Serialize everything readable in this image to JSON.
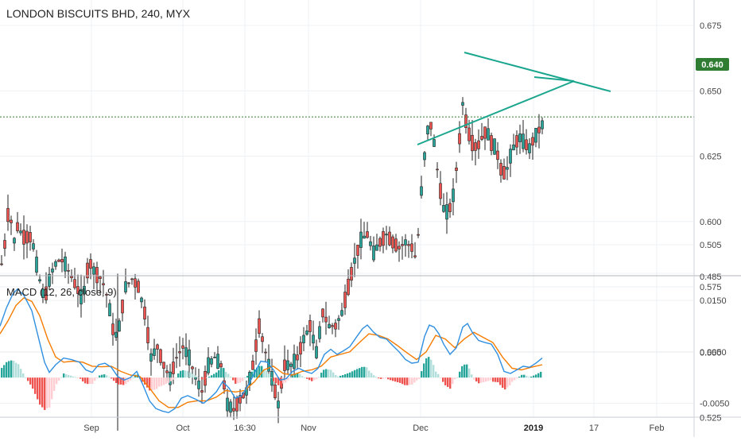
{
  "colors": {
    "background": "#ffffff",
    "grid": "#eef0f3",
    "axis_line": "#cfd3d9",
    "up_candle": "#26a69a",
    "down_candle": "#ef5350",
    "wick": "#222222",
    "price_line": "#2e7d32",
    "price_badge": "#2e7d32",
    "triangle": "#1aa68e",
    "macd": "#2f8fe0",
    "signal": "#f57c00",
    "hist_up": "#26a69a",
    "hist_up_weak": "#b2dfdb",
    "hist_down": "#ef5350",
    "hist_down_weak": "#ffcdd2"
  },
  "header": {
    "symbol_label": "LONDON BISCUITS BHD, 240, MYX"
  },
  "price_badge": {
    "value": "0.640"
  },
  "macd_legend": {
    "label": "MACD (12, 26, close, 9)"
  },
  "chart_data": [
    {
      "type": "candlestick",
      "title": "LONDON BISCUITS BHD, 240, MYX",
      "ylim": [
        0.485,
        0.69
      ],
      "y_ticks": [
        "0.675",
        "0.650",
        "0.625",
        "0.600",
        "0.575",
        "0.550",
        "0.525",
        "0.505",
        "0.485"
      ],
      "x_ticks": [
        "Sep",
        "Oct",
        "16:30",
        "Nov",
        "Dec",
        "2019",
        "17",
        "Feb"
      ],
      "last_price": 0.64,
      "anchors": [
        {
          "x": 0,
          "y": 0.58
        },
        {
          "x": 8,
          "y": 0.595
        },
        {
          "x": 12,
          "y": 0.61
        },
        {
          "x": 16,
          "y": 0.59
        },
        {
          "x": 22,
          "y": 0.598
        },
        {
          "x": 30,
          "y": 0.594
        },
        {
          "x": 40,
          "y": 0.594
        },
        {
          "x": 48,
          "y": 0.58
        },
        {
          "x": 56,
          "y": 0.57
        },
        {
          "x": 64,
          "y": 0.58
        },
        {
          "x": 72,
          "y": 0.585
        },
        {
          "x": 80,
          "y": 0.585
        },
        {
          "x": 88,
          "y": 0.58
        },
        {
          "x": 96,
          "y": 0.575
        },
        {
          "x": 104,
          "y": 0.57
        },
        {
          "x": 112,
          "y": 0.585
        },
        {
          "x": 120,
          "y": 0.58
        },
        {
          "x": 128,
          "y": 0.578
        },
        {
          "x": 136,
          "y": 0.57
        },
        {
          "x": 144,
          "y": 0.555
        },
        {
          "x": 150,
          "y": 0.56
        },
        {
          "x": 158,
          "y": 0.575
        },
        {
          "x": 166,
          "y": 0.578
        },
        {
          "x": 174,
          "y": 0.575
        },
        {
          "x": 182,
          "y": 0.565
        },
        {
          "x": 190,
          "y": 0.548
        },
        {
          "x": 198,
          "y": 0.552
        },
        {
          "x": 206,
          "y": 0.545
        },
        {
          "x": 214,
          "y": 0.54
        },
        {
          "x": 222,
          "y": 0.548
        },
        {
          "x": 230,
          "y": 0.552
        },
        {
          "x": 238,
          "y": 0.548
        },
        {
          "x": 246,
          "y": 0.54
        },
        {
          "x": 254,
          "y": 0.535
        },
        {
          "x": 262,
          "y": 0.545
        },
        {
          "x": 270,
          "y": 0.548
        },
        {
          "x": 278,
          "y": 0.545
        },
        {
          "x": 286,
          "y": 0.53
        },
        {
          "x": 294,
          "y": 0.528
        },
        {
          "x": 302,
          "y": 0.532
        },
        {
          "x": 310,
          "y": 0.535
        },
        {
          "x": 318,
          "y": 0.545
        },
        {
          "x": 326,
          "y": 0.56
        },
        {
          "x": 334,
          "y": 0.55
        },
        {
          "x": 342,
          "y": 0.54
        },
        {
          "x": 350,
          "y": 0.53
        },
        {
          "x": 358,
          "y": 0.545
        },
        {
          "x": 366,
          "y": 0.545
        },
        {
          "x": 374,
          "y": 0.548
        },
        {
          "x": 382,
          "y": 0.555
        },
        {
          "x": 390,
          "y": 0.56
        },
        {
          "x": 398,
          "y": 0.55
        },
        {
          "x": 406,
          "y": 0.565
        },
        {
          "x": 414,
          "y": 0.56
        },
        {
          "x": 422,
          "y": 0.56
        },
        {
          "x": 430,
          "y": 0.565
        },
        {
          "x": 438,
          "y": 0.575
        },
        {
          "x": 446,
          "y": 0.585
        },
        {
          "x": 454,
          "y": 0.593
        },
        {
          "x": 462,
          "y": 0.595
        },
        {
          "x": 470,
          "y": 0.588
        },
        {
          "x": 478,
          "y": 0.592
        },
        {
          "x": 486,
          "y": 0.595
        },
        {
          "x": 494,
          "y": 0.592
        },
        {
          "x": 502,
          "y": 0.59
        },
        {
          "x": 510,
          "y": 0.592
        },
        {
          "x": 518,
          "y": 0.59
        },
        {
          "x": 524,
          "y": 0.585
        },
        {
          "x": 528,
          "y": 0.605
        },
        {
          "x": 534,
          "y": 0.625
        },
        {
          "x": 540,
          "y": 0.64
        },
        {
          "x": 546,
          "y": 0.63
        },
        {
          "x": 552,
          "y": 0.615
        },
        {
          "x": 558,
          "y": 0.605
        },
        {
          "x": 564,
          "y": 0.603
        },
        {
          "x": 570,
          "y": 0.61
        },
        {
          "x": 576,
          "y": 0.625
        },
        {
          "x": 582,
          "y": 0.645
        },
        {
          "x": 588,
          "y": 0.635
        },
        {
          "x": 594,
          "y": 0.63
        },
        {
          "x": 600,
          "y": 0.628
        },
        {
          "x": 606,
          "y": 0.632
        },
        {
          "x": 612,
          "y": 0.635
        },
        {
          "x": 618,
          "y": 0.63
        },
        {
          "x": 624,
          "y": 0.628
        },
        {
          "x": 630,
          "y": 0.62
        },
        {
          "x": 636,
          "y": 0.618
        },
        {
          "x": 642,
          "y": 0.625
        },
        {
          "x": 648,
          "y": 0.63
        },
        {
          "x": 654,
          "y": 0.632
        },
        {
          "x": 660,
          "y": 0.63
        },
        {
          "x": 666,
          "y": 0.628
        },
        {
          "x": 672,
          "y": 0.632
        },
        {
          "x": 678,
          "y": 0.635
        },
        {
          "x": 684,
          "y": 0.638
        }
      ]
    },
    {
      "type": "line",
      "title": "MACD (12, 26, close, 9)",
      "ylim": [
        -0.0075,
        0.0175
      ],
      "y_ticks": [
        "0.0150",
        "0.0050",
        "-0.0050"
      ],
      "series": [
        {
          "name": "MACD",
          "values": [
            {
              "x": 0,
              "y": 0.01
            },
            {
              "x": 8,
              "y": 0.0135
            },
            {
              "x": 16,
              "y": 0.0162
            },
            {
              "x": 22,
              "y": 0.0172
            },
            {
              "x": 30,
              "y": 0.016
            },
            {
              "x": 40,
              "y": 0.013
            },
            {
              "x": 48,
              "y": 0.008
            },
            {
              "x": 56,
              "y": 0.003
            },
            {
              "x": 62,
              "y": 0.001
            },
            {
              "x": 70,
              "y": 0.0025
            },
            {
              "x": 80,
              "y": 0.0038
            },
            {
              "x": 90,
              "y": 0.0035
            },
            {
              "x": 100,
              "y": 0.003
            },
            {
              "x": 108,
              "y": 0.0015
            },
            {
              "x": 116,
              "y": 0.001
            },
            {
              "x": 124,
              "y": 0.0025
            },
            {
              "x": 132,
              "y": 0.0028
            },
            {
              "x": 140,
              "y": 0.002
            },
            {
              "x": 148,
              "y": 0.0002
            },
            {
              "x": 156,
              "y": -0.0005
            },
            {
              "x": 164,
              "y": 0.0
            },
            {
              "x": 172,
              "y": 0.0012
            },
            {
              "x": 180,
              "y": -0.0015
            },
            {
              "x": 188,
              "y": -0.0045
            },
            {
              "x": 196,
              "y": -0.006
            },
            {
              "x": 204,
              "y": -0.0065
            },
            {
              "x": 212,
              "y": -0.0068
            },
            {
              "x": 220,
              "y": -0.006
            },
            {
              "x": 228,
              "y": -0.004
            },
            {
              "x": 236,
              "y": -0.0035
            },
            {
              "x": 246,
              "y": -0.0042
            },
            {
              "x": 256,
              "y": -0.005
            },
            {
              "x": 264,
              "y": -0.004
            },
            {
              "x": 272,
              "y": -0.0028
            },
            {
              "x": 280,
              "y": -0.0008
            },
            {
              "x": 288,
              "y": -0.002
            },
            {
              "x": 296,
              "y": -0.004
            },
            {
              "x": 304,
              "y": -0.0035
            },
            {
              "x": 312,
              "y": -0.0015
            },
            {
              "x": 320,
              "y": 0.0008
            },
            {
              "x": 328,
              "y": 0.0032
            },
            {
              "x": 336,
              "y": 0.003
            },
            {
              "x": 344,
              "y": 0.0015
            },
            {
              "x": 352,
              "y": -0.0005
            },
            {
              "x": 360,
              "y": -0.0002
            },
            {
              "x": 368,
              "y": 0.0012
            },
            {
              "x": 376,
              "y": 0.0018
            },
            {
              "x": 384,
              "y": 0.0012
            },
            {
              "x": 392,
              "y": 0.0008
            },
            {
              "x": 400,
              "y": 0.0018
            },
            {
              "x": 408,
              "y": 0.0045
            },
            {
              "x": 416,
              "y": 0.0055
            },
            {
              "x": 424,
              "y": 0.0045
            },
            {
              "x": 432,
              "y": 0.0052
            },
            {
              "x": 440,
              "y": 0.006
            },
            {
              "x": 448,
              "y": 0.0078
            },
            {
              "x": 456,
              "y": 0.0095
            },
            {
              "x": 462,
              "y": 0.0102
            },
            {
              "x": 470,
              "y": 0.0088
            },
            {
              "x": 478,
              "y": 0.0078
            },
            {
              "x": 486,
              "y": 0.0075
            },
            {
              "x": 494,
              "y": 0.0062
            },
            {
              "x": 502,
              "y": 0.005
            },
            {
              "x": 510,
              "y": 0.0035
            },
            {
              "x": 518,
              "y": 0.0028
            },
            {
              "x": 526,
              "y": 0.003
            },
            {
              "x": 534,
              "y": 0.008
            },
            {
              "x": 540,
              "y": 0.0102
            },
            {
              "x": 546,
              "y": 0.0098
            },
            {
              "x": 552,
              "y": 0.0085
            },
            {
              "x": 558,
              "y": 0.0065
            },
            {
              "x": 566,
              "y": 0.0045
            },
            {
              "x": 574,
              "y": 0.0058
            },
            {
              "x": 582,
              "y": 0.0098
            },
            {
              "x": 588,
              "y": 0.0105
            },
            {
              "x": 594,
              "y": 0.0088
            },
            {
              "x": 602,
              "y": 0.0072
            },
            {
              "x": 610,
              "y": 0.0068
            },
            {
              "x": 618,
              "y": 0.0065
            },
            {
              "x": 626,
              "y": 0.0045
            },
            {
              "x": 634,
              "y": 0.0012
            },
            {
              "x": 642,
              "y": 0.0008
            },
            {
              "x": 650,
              "y": 0.0015
            },
            {
              "x": 658,
              "y": 0.0022
            },
            {
              "x": 666,
              "y": 0.002
            },
            {
              "x": 674,
              "y": 0.0028
            },
            {
              "x": 682,
              "y": 0.0038
            }
          ]
        },
        {
          "name": "Signal",
          "values": [
            {
              "x": 0,
              "y": 0.0085
            },
            {
              "x": 10,
              "y": 0.011
            },
            {
              "x": 20,
              "y": 0.014
            },
            {
              "x": 30,
              "y": 0.0155
            },
            {
              "x": 40,
              "y": 0.0148
            },
            {
              "x": 50,
              "y": 0.012
            },
            {
              "x": 60,
              "y": 0.0075
            },
            {
              "x": 70,
              "y": 0.004
            },
            {
              "x": 80,
              "y": 0.003
            },
            {
              "x": 92,
              "y": 0.0032
            },
            {
              "x": 104,
              "y": 0.003
            },
            {
              "x": 116,
              "y": 0.0022
            },
            {
              "x": 128,
              "y": 0.0021
            },
            {
              "x": 140,
              "y": 0.0022
            },
            {
              "x": 152,
              "y": 0.0012
            },
            {
              "x": 164,
              "y": 0.0005
            },
            {
              "x": 176,
              "y": 0.0002
            },
            {
              "x": 188,
              "y": -0.002
            },
            {
              "x": 200,
              "y": -0.0045
            },
            {
              "x": 212,
              "y": -0.0058
            },
            {
              "x": 224,
              "y": -0.0058
            },
            {
              "x": 236,
              "y": -0.0048
            },
            {
              "x": 248,
              "y": -0.0045
            },
            {
              "x": 260,
              "y": -0.0045
            },
            {
              "x": 272,
              "y": -0.0038
            },
            {
              "x": 284,
              "y": -0.0025
            },
            {
              "x": 296,
              "y": -0.0028
            },
            {
              "x": 308,
              "y": -0.0025
            },
            {
              "x": 320,
              "y": -0.0008
            },
            {
              "x": 332,
              "y": 0.0015
            },
            {
              "x": 344,
              "y": 0.0022
            },
            {
              "x": 356,
              "y": 0.0008
            },
            {
              "x": 368,
              "y": 0.0005
            },
            {
              "x": 380,
              "y": 0.0012
            },
            {
              "x": 392,
              "y": 0.0015
            },
            {
              "x": 404,
              "y": 0.0022
            },
            {
              "x": 416,
              "y": 0.004
            },
            {
              "x": 428,
              "y": 0.0045
            },
            {
              "x": 440,
              "y": 0.005
            },
            {
              "x": 452,
              "y": 0.0068
            },
            {
              "x": 464,
              "y": 0.0085
            },
            {
              "x": 476,
              "y": 0.0082
            },
            {
              "x": 488,
              "y": 0.0075
            },
            {
              "x": 500,
              "y": 0.0062
            },
            {
              "x": 512,
              "y": 0.0048
            },
            {
              "x": 524,
              "y": 0.0035
            },
            {
              "x": 536,
              "y": 0.005
            },
            {
              "x": 548,
              "y": 0.0082
            },
            {
              "x": 560,
              "y": 0.0075
            },
            {
              "x": 572,
              "y": 0.0058
            },
            {
              "x": 584,
              "y": 0.0075
            },
            {
              "x": 596,
              "y": 0.0088
            },
            {
              "x": 608,
              "y": 0.0078
            },
            {
              "x": 620,
              "y": 0.0068
            },
            {
              "x": 632,
              "y": 0.004
            },
            {
              "x": 644,
              "y": 0.0018
            },
            {
              "x": 656,
              "y": 0.0015
            },
            {
              "x": 668,
              "y": 0.002
            },
            {
              "x": 682,
              "y": 0.0025
            }
          ]
        }
      ]
    }
  ]
}
